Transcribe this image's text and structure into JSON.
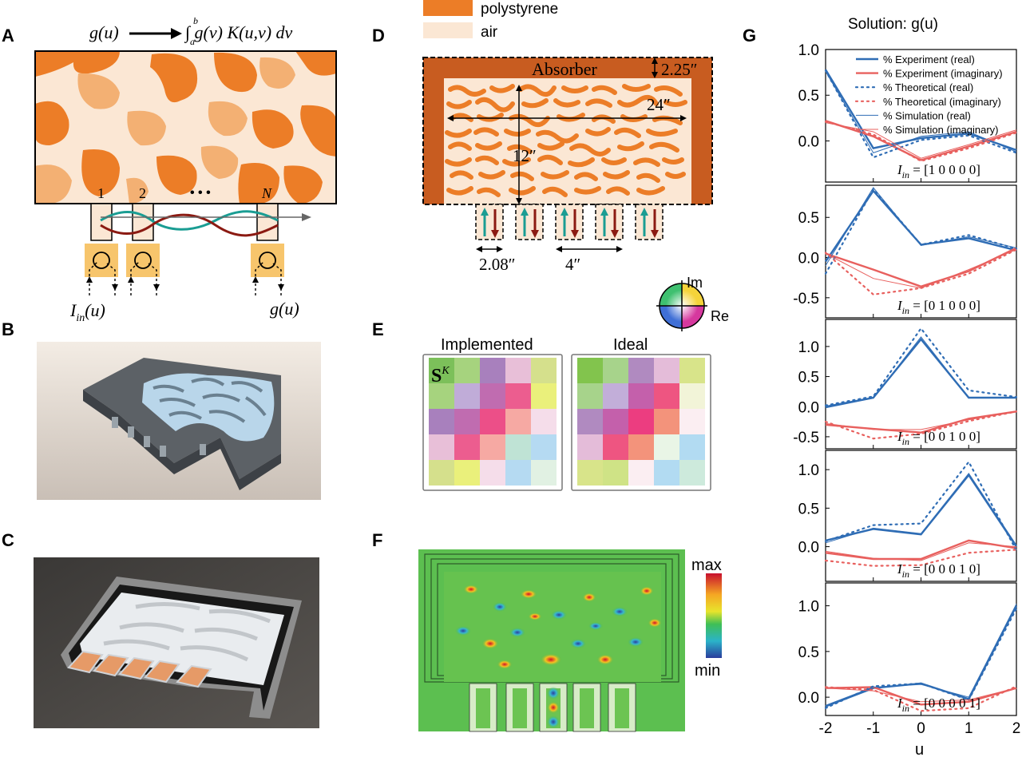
{
  "panels": {
    "A": "A",
    "B": "B",
    "C": "C",
    "D": "D",
    "E": "E",
    "F": "F",
    "G": "G"
  },
  "panelA": {
    "eq_lhs": "g(u)",
    "eq_rhs": "∫ g(v) K(u,v) dv",
    "eq_lower": "a",
    "eq_upper": "b",
    "port_labels": [
      "1",
      "2",
      "N"
    ],
    "ellipsis": "• • •",
    "input_label": "I",
    "input_sub": "in",
    "input_arg": "(u)",
    "output_label": "g(u)"
  },
  "panelD": {
    "legend": [
      {
        "label": "polystyrene",
        "color": "#ec7d27"
      },
      {
        "label": "air",
        "color": "#fbe7d4"
      }
    ],
    "absorber": "Absorber",
    "dim_absorber": "2.25″",
    "dim_width": "24″",
    "dim_height": "12″",
    "dim_port": "2.08″",
    "dim_pitch": "4″"
  },
  "panelE": {
    "axis_im": "Im",
    "axis_re": "Re",
    "implemented_title": "Implemented",
    "ideal_title": "Ideal",
    "matrix_symbol": "S",
    "matrix_sup": "K",
    "implemented": [
      [
        "#7cc05a",
        "#a6d37e",
        "#a880bd",
        "#e8bfd8",
        "#d5e08c"
      ],
      [
        "#a6d37e",
        "#c0acd8",
        "#c06cb0",
        "#ec5d8f",
        "#eaf07b"
      ],
      [
        "#a880bd",
        "#c06cb0",
        "#ec4f88",
        "#f6a9a3",
        "#f5ddea"
      ],
      [
        "#e8bfd8",
        "#ec5d8f",
        "#f6a9a3",
        "#bfe3d5",
        "#b5daf2"
      ],
      [
        "#d5e08c",
        "#eaf07b",
        "#f5ddea",
        "#b5daf2",
        "#e1f1e3"
      ]
    ],
    "ideal": [
      [
        "#82c44d",
        "#a7d38b",
        "#b08ac0",
        "#e4bcd9",
        "#d8e48a"
      ],
      [
        "#a7d38b",
        "#c2aed9",
        "#c460ab",
        "#ee5581",
        "#f2f4d8"
      ],
      [
        "#b08ac0",
        "#c460ab",
        "#ec3d80",
        "#f3937b",
        "#fbeef2"
      ],
      [
        "#e4bcd9",
        "#ee5581",
        "#f3937b",
        "#e9f5e6",
        "#b2dbf2"
      ],
      [
        "#d8e48a",
        "#cfe386",
        "#fbeef2",
        "#b2dbf2",
        "#cdeadc"
      ]
    ]
  },
  "panelF": {
    "colorbar_max": "max",
    "colorbar_min": "min"
  },
  "panelG": {
    "title": "Solution: g(u)",
    "xlabel": "u",
    "legend": [
      "% Experiment (real)",
      "% Experiment (imaginary)",
      "% Theoretical (real)",
      "% Theoretical (imaginary)",
      "% Simulation (real)",
      "% Simulation (imaginary)"
    ],
    "colors": {
      "real": "#2f6db5",
      "imag": "#e8605e"
    },
    "iin_labels": [
      {
        "name": "I",
        "sub": "in",
        "vector": "= [1  0  0  0  0]"
      },
      {
        "name": "I",
        "sub": "in",
        "vector": "= [0  1  0  0  0]"
      },
      {
        "name": "I",
        "sub": "in",
        "vector": "= [0  0  1  0  0]"
      },
      {
        "name": "I",
        "sub": "in",
        "vector": "= [0  0  0  1  0]"
      },
      {
        "name": "I",
        "sub": "in",
        "vector": "= [0  0  0  0  1]"
      }
    ]
  },
  "chart_data": [
    {
      "type": "line",
      "x": [
        -2,
        -1,
        0,
        1,
        2
      ],
      "xlim": [
        -2,
        2
      ],
      "ylim": [
        -0.45,
        1.0
      ],
      "yticks": [
        0,
        0.5,
        1.0
      ],
      "series": [
        {
          "name": "% Experiment (real)",
          "values": [
            0.78,
            -0.08,
            0.03,
            0.08,
            -0.1
          ]
        },
        {
          "name": "% Experiment (imaginary)",
          "values": [
            0.22,
            0.05,
            -0.21,
            -0.06,
            0.1
          ]
        },
        {
          "name": "% Theoretical (real)",
          "values": [
            0.77,
            -0.18,
            0.01,
            0.06,
            -0.13
          ]
        },
        {
          "name": "% Theoretical (imaginary)",
          "values": [
            0.21,
            0.07,
            -0.22,
            -0.08,
            0.09
          ]
        },
        {
          "name": "% Simulation (real)",
          "values": [
            0.76,
            -0.13,
            0.05,
            0.1,
            -0.12
          ]
        },
        {
          "name": "% Simulation (imaginary)",
          "values": [
            0.2,
            0.1,
            -0.19,
            -0.04,
            0.12
          ]
        }
      ]
    },
    {
      "type": "line",
      "x": [
        -2,
        -1,
        0,
        1,
        2
      ],
      "xlim": [
        -2,
        2
      ],
      "ylim": [
        -0.75,
        0.9
      ],
      "yticks": [
        -0.5,
        0,
        0.5
      ],
      "series": [
        {
          "name": "% Experiment (real)",
          "values": [
            -0.05,
            0.83,
            0.16,
            0.24,
            0.09
          ]
        },
        {
          "name": "% Experiment (imaginary)",
          "values": [
            0.05,
            -0.15,
            -0.36,
            -0.17,
            0.12
          ]
        },
        {
          "name": "% Theoretical (real)",
          "values": [
            -0.2,
            0.85,
            0.16,
            0.28,
            0.11
          ]
        },
        {
          "name": "% Theoretical (imaginary)",
          "values": [
            0.06,
            -0.46,
            -0.38,
            -0.2,
            0.1
          ]
        },
        {
          "name": "% Simulation (real)",
          "values": [
            -0.1,
            0.87,
            0.15,
            0.26,
            0.12
          ]
        },
        {
          "name": "% Simulation (imaginary)",
          "values": [
            0.05,
            -0.26,
            -0.38,
            -0.15,
            0.1
          ]
        }
      ]
    },
    {
      "type": "line",
      "x": [
        -2,
        -1,
        0,
        1,
        2
      ],
      "xlim": [
        -2,
        2
      ],
      "ylim": [
        -0.7,
        1.45
      ],
      "yticks": [
        -0.5,
        0,
        0.5,
        1.0
      ],
      "series": [
        {
          "name": "% Experiment (real)",
          "values": [
            0.0,
            0.15,
            1.12,
            0.15,
            0.15
          ]
        },
        {
          "name": "% Experiment (imaginary)",
          "values": [
            -0.3,
            -0.37,
            -0.43,
            -0.2,
            -0.08
          ]
        },
        {
          "name": "% Theoretical (real)",
          "values": [
            0.02,
            0.17,
            1.3,
            0.27,
            0.16
          ]
        },
        {
          "name": "% Theoretical (imaginary)",
          "values": [
            -0.25,
            -0.53,
            -0.45,
            -0.24,
            -0.08
          ]
        },
        {
          "name": "% Simulation (real)",
          "values": [
            -0.02,
            0.14,
            1.16,
            0.15,
            0.15
          ]
        },
        {
          "name": "% Simulation (imaginary)",
          "values": [
            -0.28,
            -0.38,
            -0.38,
            -0.22,
            -0.08
          ]
        }
      ]
    },
    {
      "type": "line",
      "x": [
        -2,
        -1,
        0,
        1,
        2
      ],
      "xlim": [
        -2,
        2
      ],
      "ylim": [
        -0.45,
        1.25
      ],
      "yticks": [
        0,
        0.5,
        1.0
      ],
      "series": [
        {
          "name": "% Experiment (real)",
          "values": [
            0.08,
            0.23,
            0.16,
            0.93,
            0.0
          ]
        },
        {
          "name": "% Experiment (imaginary)",
          "values": [
            -0.08,
            -0.16,
            -0.16,
            0.08,
            -0.02
          ]
        },
        {
          "name": "% Theoretical (real)",
          "values": [
            0.07,
            0.28,
            0.3,
            1.1,
            -0.05
          ]
        },
        {
          "name": "% Theoretical (imaginary)",
          "values": [
            -0.18,
            -0.25,
            -0.24,
            -0.08,
            -0.04
          ]
        },
        {
          "name": "% Simulation (real)",
          "values": [
            0.05,
            0.24,
            0.17,
            0.95,
            0.02
          ]
        },
        {
          "name": "% Simulation (imaginary)",
          "values": [
            -0.06,
            -0.15,
            -0.18,
            0.05,
            0.0
          ]
        }
      ]
    },
    {
      "type": "line",
      "x": [
        -2,
        -1,
        0,
        1,
        2
      ],
      "xlim": [
        -2,
        2
      ],
      "ylim": [
        -0.2,
        1.25
      ],
      "yticks": [
        0,
        0.5,
        1.0
      ],
      "series": [
        {
          "name": "% Experiment (real)",
          "values": [
            -0.1,
            0.1,
            0.15,
            -0.02,
            1.0
          ]
        },
        {
          "name": "% Experiment (imaginary)",
          "values": [
            0.1,
            0.11,
            -0.08,
            -0.05,
            0.1
          ]
        },
        {
          "name": "% Theoretical (real)",
          "values": [
            -0.12,
            0.12,
            0.15,
            -0.03,
            0.97
          ]
        },
        {
          "name": "% Theoretical (imaginary)",
          "values": [
            0.11,
            0.08,
            -0.15,
            -0.12,
            0.12
          ]
        },
        {
          "name": "% Simulation (real)",
          "values": [
            -0.09,
            0.11,
            0.14,
            0.0,
            1.02
          ]
        },
        {
          "name": "% Simulation (imaginary)",
          "values": [
            0.1,
            0.07,
            -0.05,
            -0.03,
            0.1
          ]
        }
      ]
    }
  ]
}
